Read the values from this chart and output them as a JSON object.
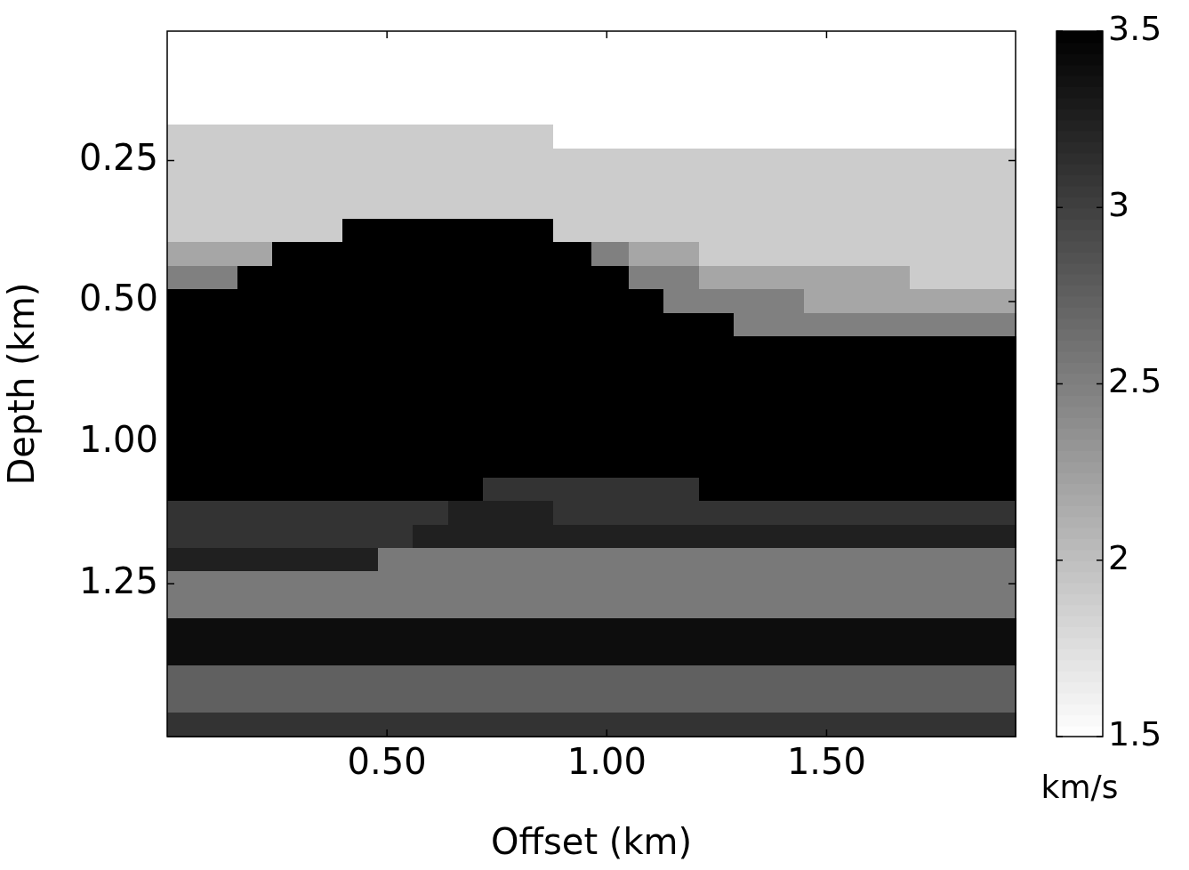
{
  "chart_data": {
    "type": "heatmap",
    "xlabel": "Offset (km)",
    "ylabel": "Depth (km)",
    "clabel": "km/s",
    "xlim": [
      0,
      1.93
    ],
    "xticks": [
      {
        "value": 0.5,
        "label": "0.50"
      },
      {
        "value": 1.0,
        "label": "1.00"
      },
      {
        "value": 1.5,
        "label": "1.50"
      }
    ],
    "y_categories": [
      null,
      null,
      null,
      null,
      null,
      "0.25",
      null,
      null,
      null,
      null,
      null,
      "0.50",
      null,
      null,
      null,
      null,
      null,
      "1.00",
      null,
      null,
      null,
      null,
      null,
      "1.25",
      null,
      null,
      null,
      null,
      null,
      null
    ],
    "clim": [
      1.5,
      3.5
    ],
    "cticks": [
      1.5,
      2,
      2.5,
      3,
      3.5
    ],
    "x": [
      0.04,
      0.12,
      0.2,
      0.28,
      0.36,
      0.44,
      0.52,
      0.6,
      0.68,
      0.76,
      0.84,
      0.92,
      1.01,
      1.09,
      1.17,
      1.25,
      1.33,
      1.41,
      1.49,
      1.57,
      1.65,
      1.73,
      1.81,
      1.89
    ],
    "cells": [
      [
        1.5,
        1.5,
        1.5,
        1.5,
        1.5,
        1.5,
        1.5,
        1.5,
        1.5,
        1.5,
        1.5,
        1.5,
        1.5,
        1.5,
        1.5,
        1.5,
        1.5,
        1.5,
        1.5,
        1.5,
        1.5,
        1.5,
        1.5,
        1.5
      ],
      [
        1.5,
        1.5,
        1.5,
        1.5,
        1.5,
        1.5,
        1.5,
        1.5,
        1.5,
        1.5,
        1.5,
        1.5,
        1.5,
        1.5,
        1.5,
        1.5,
        1.5,
        1.5,
        1.5,
        1.5,
        1.5,
        1.5,
        1.5,
        1.5
      ],
      [
        1.5,
        1.5,
        1.5,
        1.5,
        1.5,
        1.5,
        1.5,
        1.5,
        1.5,
        1.5,
        1.5,
        1.5,
        1.5,
        1.5,
        1.5,
        1.5,
        1.5,
        1.5,
        1.5,
        1.5,
        1.5,
        1.5,
        1.5,
        1.5
      ],
      [
        1.5,
        1.5,
        1.5,
        1.5,
        1.5,
        1.5,
        1.5,
        1.5,
        1.5,
        1.5,
        1.5,
        1.5,
        1.5,
        1.5,
        1.5,
        1.5,
        1.5,
        1.5,
        1.5,
        1.5,
        1.5,
        1.5,
        1.5,
        1.5
      ],
      [
        1.9,
        1.9,
        1.9,
        1.9,
        1.9,
        1.9,
        1.9,
        1.9,
        1.9,
        1.9,
        1.9,
        1.5,
        1.5,
        1.5,
        1.5,
        1.5,
        1.5,
        1.5,
        1.5,
        1.5,
        1.5,
        1.5,
        1.5,
        1.5
      ],
      [
        1.9,
        1.9,
        1.9,
        1.9,
        1.9,
        1.9,
        1.9,
        1.9,
        1.9,
        1.9,
        1.9,
        1.9,
        1.9,
        1.9,
        1.9,
        1.9,
        1.9,
        1.9,
        1.9,
        1.9,
        1.9,
        1.9,
        1.9,
        1.9
      ],
      [
        1.9,
        1.9,
        1.9,
        1.9,
        1.9,
        1.9,
        1.9,
        1.9,
        1.9,
        1.9,
        1.9,
        1.9,
        1.9,
        1.9,
        1.9,
        1.9,
        1.9,
        1.9,
        1.9,
        1.9,
        1.9,
        1.9,
        1.9,
        1.9
      ],
      [
        1.9,
        1.9,
        1.9,
        1.9,
        1.9,
        1.9,
        1.9,
        1.9,
        1.9,
        1.9,
        1.9,
        1.9,
        1.9,
        1.9,
        1.9,
        1.9,
        1.9,
        1.9,
        1.9,
        1.9,
        1.9,
        1.9,
        1.9,
        1.9
      ],
      [
        1.9,
        1.9,
        1.9,
        1.9,
        1.9,
        3.5,
        3.5,
        3.5,
        3.5,
        3.5,
        3.5,
        1.9,
        1.9,
        1.9,
        1.9,
        1.9,
        1.9,
        1.9,
        1.9,
        1.9,
        1.9,
        1.9,
        1.9,
        1.9
      ],
      [
        2.2,
        2.2,
        2.2,
        3.5,
        3.5,
        3.5,
        3.5,
        3.5,
        3.5,
        3.5,
        3.5,
        3.5,
        2.5,
        2.2,
        2.2,
        1.9,
        1.9,
        1.9,
        1.9,
        1.9,
        1.9,
        1.9,
        1.9,
        1.9
      ],
      [
        2.5,
        2.5,
        3.5,
        3.5,
        3.5,
        3.5,
        3.5,
        3.5,
        3.5,
        3.5,
        3.5,
        3.5,
        3.5,
        2.5,
        2.5,
        2.2,
        2.2,
        2.2,
        2.2,
        2.2,
        2.2,
        1.9,
        1.9,
        1.9
      ],
      [
        3.5,
        3.5,
        3.5,
        3.5,
        3.5,
        3.5,
        3.5,
        3.5,
        3.5,
        3.5,
        3.5,
        3.5,
        3.5,
        3.5,
        2.5,
        2.5,
        2.5,
        2.5,
        2.2,
        2.2,
        2.2,
        2.2,
        2.2,
        2.2
      ],
      [
        3.5,
        3.5,
        3.5,
        3.5,
        3.5,
        3.5,
        3.5,
        3.5,
        3.5,
        3.5,
        3.5,
        3.5,
        3.5,
        3.5,
        3.5,
        3.5,
        2.5,
        2.5,
        2.5,
        2.5,
        2.5,
        2.5,
        2.5,
        2.5
      ],
      [
        3.5,
        3.5,
        3.5,
        3.5,
        3.5,
        3.5,
        3.5,
        3.5,
        3.5,
        3.5,
        3.5,
        3.5,
        3.5,
        3.5,
        3.5,
        3.5,
        3.5,
        3.5,
        3.5,
        3.5,
        3.5,
        3.5,
        3.5,
        3.5
      ],
      [
        3.5,
        3.5,
        3.5,
        3.5,
        3.5,
        3.5,
        3.5,
        3.5,
        3.5,
        3.5,
        3.5,
        3.5,
        3.5,
        3.5,
        3.5,
        3.5,
        3.5,
        3.5,
        3.5,
        3.5,
        3.5,
        3.5,
        3.5,
        3.5
      ],
      [
        3.5,
        3.5,
        3.5,
        3.5,
        3.5,
        3.5,
        3.5,
        3.5,
        3.5,
        3.5,
        3.5,
        3.5,
        3.5,
        3.5,
        3.5,
        3.5,
        3.5,
        3.5,
        3.5,
        3.5,
        3.5,
        3.5,
        3.5,
        3.5
      ],
      [
        3.5,
        3.5,
        3.5,
        3.5,
        3.5,
        3.5,
        3.5,
        3.5,
        3.5,
        3.5,
        3.5,
        3.5,
        3.5,
        3.5,
        3.5,
        3.5,
        3.5,
        3.5,
        3.5,
        3.5,
        3.5,
        3.5,
        3.5,
        3.5
      ],
      [
        3.5,
        3.5,
        3.5,
        3.5,
        3.5,
        3.5,
        3.5,
        3.5,
        3.5,
        3.5,
        3.5,
        3.5,
        3.5,
        3.5,
        3.5,
        3.5,
        3.5,
        3.5,
        3.5,
        3.5,
        3.5,
        3.5,
        3.5,
        3.5
      ],
      [
        3.5,
        3.5,
        3.5,
        3.5,
        3.5,
        3.5,
        3.5,
        3.5,
        3.5,
        3.5,
        3.5,
        3.5,
        3.5,
        3.5,
        3.5,
        3.5,
        3.5,
        3.5,
        3.5,
        3.5,
        3.5,
        3.5,
        3.5,
        3.5
      ],
      [
        3.5,
        3.5,
        3.5,
        3.5,
        3.5,
        3.5,
        3.5,
        3.5,
        3.5,
        3.1,
        3.1,
        3.1,
        3.1,
        3.1,
        3.1,
        3.5,
        3.5,
        3.5,
        3.5,
        3.5,
        3.5,
        3.5,
        3.5,
        3.5
      ],
      [
        3.1,
        3.1,
        3.1,
        3.1,
        3.1,
        3.1,
        3.1,
        3.1,
        3.25,
        3.25,
        3.25,
        3.1,
        3.1,
        3.1,
        3.1,
        3.1,
        3.1,
        3.1,
        3.1,
        3.1,
        3.1,
        3.1,
        3.1,
        3.1
      ],
      [
        3.1,
        3.1,
        3.1,
        3.1,
        3.1,
        3.1,
        3.1,
        3.25,
        3.25,
        3.25,
        3.25,
        3.25,
        3.25,
        3.25,
        3.25,
        3.25,
        3.25,
        3.25,
        3.25,
        3.25,
        3.25,
        3.25,
        3.25,
        3.25
      ],
      [
        3.25,
        3.25,
        3.25,
        3.25,
        3.25,
        3.25,
        2.55,
        2.55,
        2.55,
        2.55,
        2.55,
        2.55,
        2.55,
        2.55,
        2.55,
        2.55,
        2.55,
        2.55,
        2.55,
        2.55,
        2.55,
        2.55,
        2.55,
        2.55
      ],
      [
        2.55,
        2.55,
        2.55,
        2.55,
        2.55,
        2.55,
        2.55,
        2.55,
        2.55,
        2.55,
        2.55,
        2.55,
        2.55,
        2.55,
        2.55,
        2.55,
        2.55,
        2.55,
        2.55,
        2.55,
        2.55,
        2.55,
        2.55,
        2.55
      ],
      [
        2.55,
        2.55,
        2.55,
        2.55,
        2.55,
        2.55,
        2.55,
        2.55,
        2.55,
        2.55,
        2.55,
        2.55,
        2.55,
        2.55,
        2.55,
        2.55,
        2.55,
        2.55,
        2.55,
        2.55,
        2.55,
        2.55,
        2.55,
        2.55
      ],
      [
        3.4,
        3.4,
        3.4,
        3.4,
        3.4,
        3.4,
        3.4,
        3.4,
        3.4,
        3.4,
        3.4,
        3.4,
        3.4,
        3.4,
        3.4,
        3.4,
        3.4,
        3.4,
        3.4,
        3.4,
        3.4,
        3.4,
        3.4,
        3.4
      ],
      [
        3.4,
        3.4,
        3.4,
        3.4,
        3.4,
        3.4,
        3.4,
        3.4,
        3.4,
        3.4,
        3.4,
        3.4,
        3.4,
        3.4,
        3.4,
        3.4,
        3.4,
        3.4,
        3.4,
        3.4,
        3.4,
        3.4,
        3.4,
        3.4
      ],
      [
        2.75,
        2.75,
        2.75,
        2.75,
        2.75,
        2.75,
        2.75,
        2.75,
        2.75,
        2.75,
        2.75,
        2.75,
        2.75,
        2.75,
        2.75,
        2.75,
        2.75,
        2.75,
        2.75,
        2.75,
        2.75,
        2.75,
        2.75,
        2.75
      ],
      [
        2.75,
        2.75,
        2.75,
        2.75,
        2.75,
        2.75,
        2.75,
        2.75,
        2.75,
        2.75,
        2.75,
        2.75,
        2.75,
        2.75,
        2.75,
        2.75,
        2.75,
        2.75,
        2.75,
        2.75,
        2.75,
        2.75,
        2.75,
        2.75
      ],
      [
        3.1,
        3.1,
        3.1,
        3.1,
        3.1,
        3.1,
        3.1,
        3.1,
        3.1,
        3.1,
        3.1,
        3.1,
        3.1,
        3.1,
        3.1,
        3.1,
        3.1,
        3.1,
        3.1,
        3.1,
        3.1,
        3.1,
        3.1,
        3.1
      ]
    ]
  }
}
